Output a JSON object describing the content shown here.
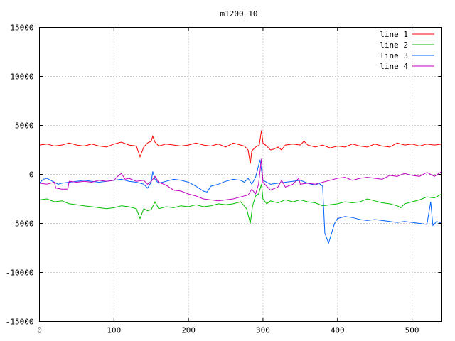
{
  "chart_data": {
    "type": "line",
    "title": "m1200_10",
    "xlabel": "",
    "ylabel": "",
    "xlim": [
      0,
      540
    ],
    "ylim": [
      -15000,
      15000
    ],
    "x_ticks": [
      0,
      100,
      200,
      300,
      400,
      500
    ],
    "y_ticks": [
      -15000,
      -10000,
      -5000,
      0,
      5000,
      10000,
      15000
    ],
    "grid": true,
    "legend_position": "top-right",
    "series": [
      {
        "name": "line 1",
        "color": "#ff0000",
        "points": [
          [
            0,
            3000
          ],
          [
            10,
            3100
          ],
          [
            20,
            2900
          ],
          [
            30,
            3000
          ],
          [
            40,
            3200
          ],
          [
            50,
            3000
          ],
          [
            60,
            2900
          ],
          [
            70,
            3100
          ],
          [
            80,
            2900
          ],
          [
            90,
            2800
          ],
          [
            100,
            3100
          ],
          [
            110,
            3300
          ],
          [
            120,
            3000
          ],
          [
            130,
            2900
          ],
          [
            135,
            1800
          ],
          [
            140,
            2800
          ],
          [
            145,
            3200
          ],
          [
            150,
            3400
          ],
          [
            152,
            3900
          ],
          [
            155,
            3300
          ],
          [
            160,
            2900
          ],
          [
            170,
            3100
          ],
          [
            180,
            3000
          ],
          [
            190,
            2900
          ],
          [
            200,
            3000
          ],
          [
            210,
            3200
          ],
          [
            220,
            3000
          ],
          [
            230,
            2900
          ],
          [
            240,
            3100
          ],
          [
            250,
            2800
          ],
          [
            260,
            3200
          ],
          [
            270,
            3000
          ],
          [
            275,
            2900
          ],
          [
            280,
            2500
          ],
          [
            283,
            1100
          ],
          [
            285,
            2400
          ],
          [
            290,
            2800
          ],
          [
            295,
            3000
          ],
          [
            298,
            4500
          ],
          [
            300,
            3200
          ],
          [
            305,
            2900
          ],
          [
            310,
            2500
          ],
          [
            315,
            2600
          ],
          [
            320,
            2800
          ],
          [
            325,
            2500
          ],
          [
            330,
            3000
          ],
          [
            340,
            3100
          ],
          [
            350,
            3000
          ],
          [
            355,
            3400
          ],
          [
            360,
            3000
          ],
          [
            370,
            2800
          ],
          [
            380,
            3000
          ],
          [
            390,
            2700
          ],
          [
            400,
            2900
          ],
          [
            410,
            2800
          ],
          [
            420,
            3100
          ],
          [
            430,
            2900
          ],
          [
            440,
            2800
          ],
          [
            450,
            3100
          ],
          [
            460,
            2900
          ],
          [
            470,
            2800
          ],
          [
            480,
            3200
          ],
          [
            490,
            3000
          ],
          [
            500,
            3100
          ],
          [
            510,
            2900
          ],
          [
            520,
            3100
          ],
          [
            530,
            3000
          ],
          [
            540,
            3100
          ]
        ]
      },
      {
        "name": "line 2",
        "color": "#00c000",
        "points": [
          [
            0,
            -2600
          ],
          [
            10,
            -2500
          ],
          [
            20,
            -2800
          ],
          [
            30,
            -2700
          ],
          [
            40,
            -3000
          ],
          [
            50,
            -3100
          ],
          [
            60,
            -3200
          ],
          [
            70,
            -3300
          ],
          [
            80,
            -3400
          ],
          [
            90,
            -3500
          ],
          [
            100,
            -3400
          ],
          [
            110,
            -3200
          ],
          [
            120,
            -3300
          ],
          [
            130,
            -3500
          ],
          [
            135,
            -4500
          ],
          [
            140,
            -3500
          ],
          [
            145,
            -3700
          ],
          [
            150,
            -3600
          ],
          [
            155,
            -2800
          ],
          [
            160,
            -3500
          ],
          [
            170,
            -3300
          ],
          [
            180,
            -3400
          ],
          [
            190,
            -3200
          ],
          [
            200,
            -3300
          ],
          [
            210,
            -3100
          ],
          [
            220,
            -3300
          ],
          [
            230,
            -3200
          ],
          [
            240,
            -3000
          ],
          [
            250,
            -3100
          ],
          [
            260,
            -3000
          ],
          [
            270,
            -2800
          ],
          [
            278,
            -3500
          ],
          [
            283,
            -5000
          ],
          [
            286,
            -3200
          ],
          [
            290,
            -2200
          ],
          [
            294,
            -2000
          ],
          [
            298,
            -1000
          ],
          [
            300,
            -2500
          ],
          [
            305,
            -3000
          ],
          [
            310,
            -2700
          ],
          [
            320,
            -2900
          ],
          [
            330,
            -2600
          ],
          [
            340,
            -2800
          ],
          [
            350,
            -2600
          ],
          [
            360,
            -2800
          ],
          [
            370,
            -2900
          ],
          [
            380,
            -3200
          ],
          [
            390,
            -3100
          ],
          [
            400,
            -3000
          ],
          [
            410,
            -2800
          ],
          [
            420,
            -2900
          ],
          [
            430,
            -2800
          ],
          [
            440,
            -2500
          ],
          [
            450,
            -2700
          ],
          [
            460,
            -2900
          ],
          [
            470,
            -3000
          ],
          [
            480,
            -3200
          ],
          [
            485,
            -3400
          ],
          [
            490,
            -3000
          ],
          [
            500,
            -2800
          ],
          [
            510,
            -2600
          ],
          [
            520,
            -2300
          ],
          [
            530,
            -2400
          ],
          [
            540,
            -2000
          ]
        ]
      },
      {
        "name": "line 3",
        "color": "#0060ff",
        "points": [
          [
            0,
            -900
          ],
          [
            5,
            -500
          ],
          [
            10,
            -400
          ],
          [
            15,
            -600
          ],
          [
            20,
            -800
          ],
          [
            25,
            -1000
          ],
          [
            30,
            -900
          ],
          [
            40,
            -800
          ],
          [
            50,
            -700
          ],
          [
            60,
            -600
          ],
          [
            70,
            -700
          ],
          [
            80,
            -800
          ],
          [
            90,
            -700
          ],
          [
            100,
            -600
          ],
          [
            110,
            -500
          ],
          [
            120,
            -700
          ],
          [
            130,
            -800
          ],
          [
            140,
            -1000
          ],
          [
            145,
            -1400
          ],
          [
            150,
            -800
          ],
          [
            152,
            300
          ],
          [
            155,
            -500
          ],
          [
            160,
            -900
          ],
          [
            170,
            -700
          ],
          [
            180,
            -500
          ],
          [
            190,
            -600
          ],
          [
            200,
            -800
          ],
          [
            210,
            -1200
          ],
          [
            220,
            -1700
          ],
          [
            225,
            -1800
          ],
          [
            230,
            -1200
          ],
          [
            240,
            -1000
          ],
          [
            250,
            -700
          ],
          [
            260,
            -500
          ],
          [
            270,
            -600
          ],
          [
            275,
            -800
          ],
          [
            280,
            -400
          ],
          [
            285,
            -1000
          ],
          [
            290,
            -300
          ],
          [
            296,
            1500
          ],
          [
            300,
            -600
          ],
          [
            310,
            -1000
          ],
          [
            320,
            -900
          ],
          [
            330,
            -800
          ],
          [
            340,
            -700
          ],
          [
            350,
            -600
          ],
          [
            360,
            -900
          ],
          [
            370,
            -1100
          ],
          [
            375,
            -900
          ],
          [
            380,
            -1200
          ],
          [
            383,
            -6000
          ],
          [
            388,
            -7000
          ],
          [
            392,
            -6000
          ],
          [
            396,
            -5000
          ],
          [
            400,
            -4500
          ],
          [
            410,
            -4300
          ],
          [
            420,
            -4400
          ],
          [
            430,
            -4600
          ],
          [
            440,
            -4700
          ],
          [
            450,
            -4600
          ],
          [
            460,
            -4700
          ],
          [
            470,
            -4800
          ],
          [
            480,
            -4900
          ],
          [
            490,
            -4800
          ],
          [
            500,
            -4900
          ],
          [
            510,
            -5000
          ],
          [
            520,
            -5100
          ],
          [
            525,
            -2800
          ],
          [
            528,
            -5200
          ],
          [
            533,
            -4800
          ],
          [
            540,
            -5000
          ]
        ]
      },
      {
        "name": "line 4",
        "color": "#c000c0",
        "points": [
          [
            0,
            -900
          ],
          [
            10,
            -1000
          ],
          [
            20,
            -800
          ],
          [
            22,
            -1400
          ],
          [
            30,
            -1500
          ],
          [
            38,
            -1500
          ],
          [
            40,
            -700
          ],
          [
            50,
            -800
          ],
          [
            60,
            -700
          ],
          [
            70,
            -800
          ],
          [
            80,
            -600
          ],
          [
            90,
            -700
          ],
          [
            100,
            -600
          ],
          [
            105,
            -200
          ],
          [
            110,
            100
          ],
          [
            115,
            -500
          ],
          [
            120,
            -400
          ],
          [
            130,
            -700
          ],
          [
            140,
            -600
          ],
          [
            145,
            -1000
          ],
          [
            150,
            -700
          ],
          [
            155,
            -200
          ],
          [
            160,
            -800
          ],
          [
            170,
            -1100
          ],
          [
            180,
            -1600
          ],
          [
            190,
            -1700
          ],
          [
            200,
            -2000
          ],
          [
            210,
            -2200
          ],
          [
            220,
            -2500
          ],
          [
            230,
            -2600
          ],
          [
            240,
            -2700
          ],
          [
            250,
            -2600
          ],
          [
            260,
            -2500
          ],
          [
            270,
            -2300
          ],
          [
            280,
            -2100
          ],
          [
            285,
            -1500
          ],
          [
            290,
            -2000
          ],
          [
            294,
            -1000
          ],
          [
            298,
            1600
          ],
          [
            300,
            -800
          ],
          [
            305,
            -1200
          ],
          [
            310,
            -1600
          ],
          [
            320,
            -1300
          ],
          [
            325,
            -600
          ],
          [
            330,
            -1300
          ],
          [
            340,
            -1000
          ],
          [
            348,
            -400
          ],
          [
            350,
            -1000
          ],
          [
            360,
            -900
          ],
          [
            370,
            -1000
          ],
          [
            380,
            -800
          ],
          [
            390,
            -600
          ],
          [
            400,
            -400
          ],
          [
            410,
            -300
          ],
          [
            420,
            -600
          ],
          [
            430,
            -400
          ],
          [
            440,
            -300
          ],
          [
            450,
            -400
          ],
          [
            460,
            -500
          ],
          [
            470,
            -100
          ],
          [
            480,
            -200
          ],
          [
            490,
            100
          ],
          [
            500,
            -100
          ],
          [
            510,
            -200
          ],
          [
            520,
            200
          ],
          [
            530,
            -200
          ],
          [
            540,
            300
          ]
        ]
      }
    ]
  }
}
